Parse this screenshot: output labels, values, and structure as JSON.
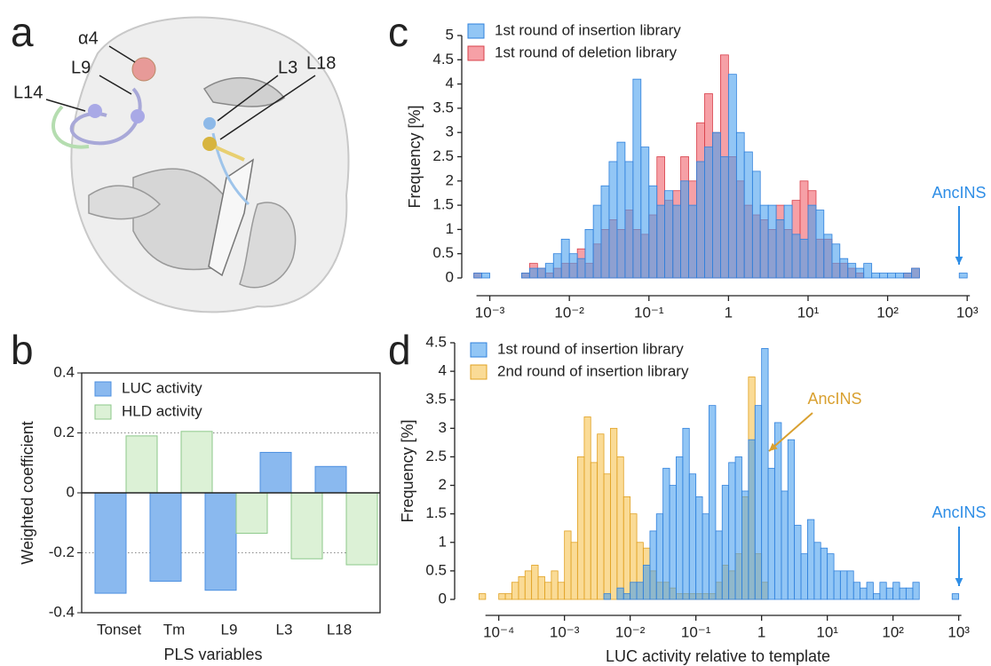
{
  "panel_labels": [
    "a",
    "b",
    "c",
    "d"
  ],
  "structure_labels": [
    "α4",
    "L9",
    "L14",
    "L3",
    "L18"
  ],
  "chart_data": [
    {
      "type": "bar",
      "y_label": "Weighted coefficient",
      "x_label": "PLS variables",
      "categories": [
        "Tonset",
        "Tm",
        "L9",
        "L3",
        "L18"
      ],
      "series": [
        {
          "name": "LUC activity",
          "color": "#8ab9ef",
          "edge": "#4d90e0",
          "values": [
            -0.335,
            -0.295,
            -0.325,
            0.135,
            0.088
          ]
        },
        {
          "name": "HLD activity",
          "color": "#dcf1d6",
          "edge": "#8cc88a",
          "values": [
            0.19,
            0.205,
            -0.135,
            -0.22,
            -0.24
          ]
        }
      ],
      "ylim": [
        -0.4,
        0.4
      ],
      "yticks": [
        -0.4,
        -0.2,
        0,
        0.2,
        0.4
      ],
      "grid": true
    },
    {
      "type": "histogram",
      "y_label": "Frequency [%]",
      "xscale": "log",
      "bins": [
        0.000631,
        0.000794,
        0.001,
        0.00126,
        0.00158,
        0.002,
        0.00251,
        0.00316,
        0.00398,
        0.00501,
        0.00631,
        0.00794,
        0.01,
        0.0126,
        0.0158,
        0.02,
        0.0251,
        0.0316,
        0.0398,
        0.0501,
        0.0631,
        0.0794,
        0.1,
        0.126,
        0.158,
        0.2,
        0.251,
        0.316,
        0.398,
        0.501,
        0.631,
        0.794,
        1,
        1.26,
        1.58,
        2,
        2.51,
        3.16,
        3.98,
        5.01,
        6.31,
        7.94,
        10,
        12.6,
        15.8,
        20,
        25.1,
        31.6,
        39.8,
        50.1,
        63.1,
        79.4,
        100,
        126,
        158,
        200,
        251,
        316,
        398,
        501,
        631,
        794,
        1000
      ],
      "series": [
        {
          "name": "1st round of insertion library",
          "color": "#4aa0ee",
          "edge": "#2f80dc",
          "values": [
            0.1,
            0.1,
            0,
            0,
            0,
            0,
            0.1,
            0.2,
            0.2,
            0.3,
            0.5,
            0.8,
            0.5,
            0.4,
            1.0,
            1.5,
            1.9,
            2.4,
            2.8,
            2.4,
            4.1,
            2.7,
            1.9,
            1.5,
            1.8,
            1.5,
            2.0,
            1.5,
            2.4,
            2.7,
            3.0,
            2.5,
            4.2,
            3.0,
            2.6,
            2.2,
            1.5,
            1.5,
            1.2,
            1.5,
            0.9,
            0.8,
            1.5,
            1.4,
            0.9,
            0.7,
            0.4,
            0.3,
            0.2,
            0.3,
            0.1,
            0.1,
            0.1,
            0.1,
            0.1,
            0.2,
            0,
            0,
            0,
            0,
            0,
            0.1
          ]
        },
        {
          "name": "1st round of deletion library",
          "color": "#f0606a",
          "edge": "#d8404a",
          "values": [
            0.1,
            0,
            0,
            0,
            0,
            0,
            0.1,
            0.3,
            0.2,
            0.1,
            0.2,
            0.3,
            0.3,
            0.6,
            0.3,
            0.7,
            1.0,
            1.2,
            1.0,
            1.4,
            1.0,
            0.9,
            1.3,
            2.5,
            1.6,
            1.8,
            2.5,
            2.0,
            3.2,
            3.8,
            3.0,
            4.6,
            2.5,
            2.0,
            1.5,
            1.3,
            1.2,
            1.0,
            1.5,
            1.0,
            1.6,
            2.0,
            1.8,
            0.8,
            0.8,
            0.3,
            0.3,
            0.2,
            0.1,
            0,
            0,
            0,
            0,
            0,
            0.1,
            0.2,
            0,
            0,
            0,
            0,
            0,
            0
          ]
        }
      ],
      "xlim": [
        0.00048,
        1320
      ],
      "xticks": [
        {
          "value": 0.001,
          "label": "10⁻³"
        },
        {
          "value": 0.01,
          "label": "10⁻²"
        },
        {
          "value": 0.1,
          "label": "10⁻¹"
        },
        1,
        {
          "value": 10,
          "label": "10¹"
        },
        {
          "value": 100,
          "label": "10²"
        },
        {
          "value": 1000,
          "label": "10³"
        }
      ],
      "ylim": [
        0,
        5
      ],
      "yticks": [
        0,
        0.5,
        1,
        1.5,
        2,
        2.5,
        3,
        3.5,
        4,
        4.5,
        5
      ],
      "annotations": [
        {
          "text": "AncINS",
          "color": "#2f8ee6"
        }
      ]
    },
    {
      "type": "histogram",
      "y_label": "Frequency [%]",
      "x_label": "LUC activity relative to template",
      "xscale": "log",
      "bins": [
        5.01e-05,
        6.31e-05,
        7.94e-05,
        0.0001,
        0.000126,
        0.000158,
        0.0002,
        0.000251,
        0.000316,
        0.000398,
        0.000501,
        0.000631,
        0.000794,
        0.001,
        0.00126,
        0.00158,
        0.002,
        0.00251,
        0.00316,
        0.00398,
        0.00501,
        0.00631,
        0.00794,
        0.01,
        0.0126,
        0.0158,
        0.02,
        0.0251,
        0.0316,
        0.0398,
        0.0501,
        0.0631,
        0.0794,
        0.1,
        0.126,
        0.158,
        0.2,
        0.251,
        0.316,
        0.398,
        0.501,
        0.631,
        0.794,
        1,
        1.26,
        1.58,
        2,
        2.51,
        3.16,
        3.98,
        5.01,
        6.31,
        7.94,
        10,
        12.6,
        15.8,
        20,
        25.1,
        31.6,
        39.8,
        50.1,
        63.1,
        79.4,
        100,
        126,
        158,
        200,
        251,
        316,
        398,
        501,
        631,
        794,
        1000
      ],
      "series": [
        {
          "name": "1st round of insertion library",
          "color": "#4aa0ee",
          "edge": "#2f80dc",
          "values": [
            0,
            0,
            0,
            0,
            0,
            0,
            0,
            0,
            0,
            0,
            0,
            0,
            0,
            0,
            0,
            0,
            0,
            0,
            0,
            0.1,
            0,
            0.2,
            0.1,
            0.3,
            0.3,
            0.6,
            1.2,
            1.5,
            2.3,
            2.0,
            2.5,
            3.0,
            2.2,
            1.8,
            1.5,
            3.4,
            1.2,
            2.0,
            2.4,
            2.5,
            1.9,
            2.8,
            3.4,
            4.4,
            2.3,
            3.1,
            1.9,
            2.8,
            1.3,
            0.8,
            1.4,
            1.0,
            0.9,
            0.8,
            0.5,
            0.5,
            0.5,
            0.3,
            0.2,
            0.3,
            0.1,
            0.3,
            0.2,
            0.3,
            0.2,
            0.2,
            0.3,
            0,
            0,
            0,
            0,
            0,
            0.1
          ]
        },
        {
          "name": "2nd round of insertion library",
          "color": "#f7c350",
          "edge": "#e0a020",
          "values": [
            0.1,
            0,
            0,
            0.1,
            0.1,
            0.3,
            0.4,
            0.5,
            0.6,
            0.4,
            0.3,
            0.5,
            0.3,
            1.2,
            1.0,
            2.5,
            3.2,
            2.4,
            2.9,
            2.2,
            3.0,
            2.5,
            1.8,
            1.5,
            1.0,
            0.9,
            0.5,
            0.3,
            0.3,
            0.2,
            0.1,
            0.1,
            0.1,
            0.1,
            0.1,
            0.1,
            0.3,
            0.6,
            0.5,
            0.8,
            1.8,
            3.9,
            0.8,
            0.3,
            0,
            0,
            0,
            0,
            0,
            0,
            0,
            0,
            0,
            0,
            0,
            0,
            0,
            0,
            0,
            0,
            0,
            0,
            0,
            0,
            0,
            0,
            0,
            0,
            0,
            0,
            0,
            0,
            0
          ]
        }
      ],
      "xlim": [
        3.4e-05,
        1380
      ],
      "xticks": [
        {
          "value": 0.0001,
          "label": "10⁻⁴"
        },
        {
          "value": 0.001,
          "label": "10⁻³"
        },
        {
          "value": 0.01,
          "label": "10⁻²"
        },
        {
          "value": 0.1,
          "label": "10⁻¹"
        },
        1,
        {
          "value": 10,
          "label": "10¹"
        },
        {
          "value": 100,
          "label": "10²"
        },
        {
          "value": 1000,
          "label": "10³"
        }
      ],
      "ylim": [
        0,
        4.5
      ],
      "yticks": [
        0,
        0.5,
        1,
        1.5,
        2,
        2.5,
        3,
        3.5,
        4,
        4.5
      ],
      "annotations": [
        {
          "text": "AncINS",
          "color": "#d9a030"
        },
        {
          "text": "AncINS",
          "color": "#2f8ee6"
        }
      ]
    }
  ]
}
